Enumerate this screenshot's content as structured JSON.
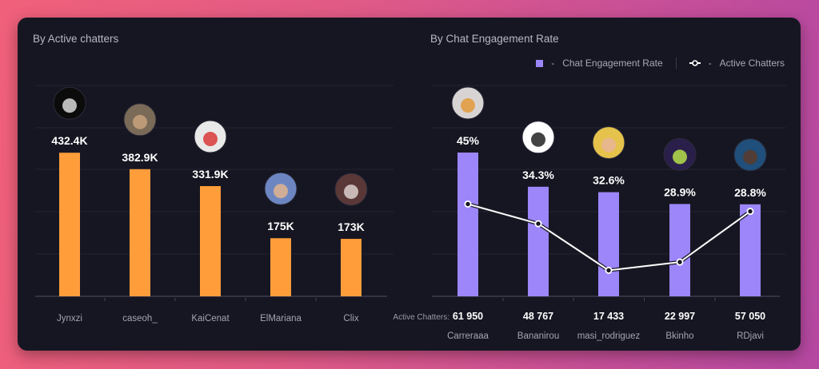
{
  "colors": {
    "active_bar": "#ff9d3b",
    "engagement_bar": "#9c86fa",
    "line": "#ffffff",
    "grid": "#242433",
    "axis": "#45455a"
  },
  "chart_data": [
    {
      "type": "bar",
      "title": "By Active chatters",
      "categories": [
        "Jynxzi",
        "caseoh_",
        "KaiCenat",
        "ElMariana",
        "Clix"
      ],
      "values": [
        432400,
        382900,
        331900,
        175000,
        173000
      ],
      "value_labels": [
        "432.4K",
        "382.9K",
        "331.9K",
        "175K",
        "173K"
      ],
      "avatars": [
        "jynxzi-avatar",
        "caseoh-avatar",
        "kaicenat-avatar",
        "elmariana-avatar",
        "clix-avatar"
      ],
      "xlabel": "",
      "ylabel": "",
      "ylim": [
        0,
        635000
      ],
      "grid": true
    },
    {
      "type": "bar",
      "title": "By Chat Engagement Rate",
      "categories": [
        "Carreraaa",
        "Bananirou",
        "masi_rodriguez",
        "Bkinho",
        "RDjavi"
      ],
      "series": [
        {
          "name": "Chat Engagement Rate",
          "type": "bar",
          "values": [
            45,
            34.3,
            32.6,
            28.9,
            28.8
          ],
          "value_labels": [
            "45%",
            "34.3%",
            "32.6%",
            "28.9%",
            "28.8%"
          ],
          "ylim": [
            0,
            66
          ]
        },
        {
          "name": "Active Chatters",
          "type": "line",
          "values": [
            61950,
            48767,
            17433,
            22997,
            57050
          ],
          "value_labels": [
            "61 950",
            "48 767",
            "17 433",
            "22 997",
            "57 050"
          ],
          "ylim": [
            0,
            141600
          ]
        }
      ],
      "active_chatters_title": "Active Chatters:",
      "avatars": [
        "carreraaa-avatar",
        "bananirou-avatar",
        "masi-rodriguez-avatar",
        "bkinho-avatar",
        "rdjavi-avatar"
      ],
      "legend": {
        "position": "top-right",
        "items": [
          {
            "label": "Chat Engagement Rate",
            "dash": "-"
          },
          {
            "label": "Active Chatters",
            "dash": "-"
          }
        ]
      },
      "grid": true
    }
  ]
}
